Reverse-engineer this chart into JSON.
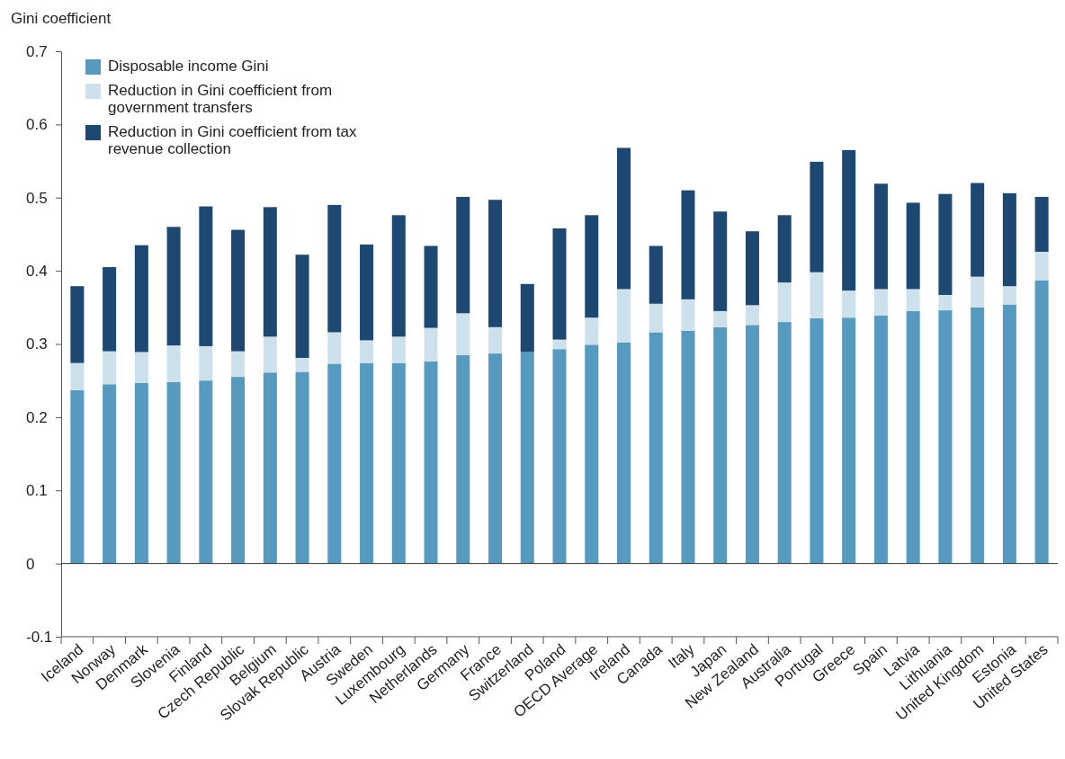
{
  "chart_data": {
    "type": "bar",
    "stacked": true,
    "ylabel": "Gini coefficient",
    "categories": [
      "Iceland",
      "Norway",
      "Denmark",
      "Slovenia",
      "Finland",
      "Czech Republic",
      "Belgium",
      "Slovak Republic",
      "Austria",
      "Sweden",
      "Luxembourg",
      "Netherlands",
      "Germany",
      "France",
      "Switzerland",
      "Poland",
      "OECD Average",
      "Ireland",
      "Canada",
      "Italy",
      "Japan",
      "New Zealand",
      "Australia",
      "Portugal",
      "Greece",
      "Spain",
      "Latvia",
      "Lithuania",
      "United Kingdom",
      "Estonia",
      "United States"
    ],
    "series": [
      {
        "name": "Disposable income Gini",
        "color": "#569bbf",
        "values": [
          0.237,
          0.245,
          0.247,
          0.248,
          0.25,
          0.255,
          0.261,
          0.262,
          0.273,
          0.274,
          0.274,
          0.276,
          0.285,
          0.287,
          0.289,
          0.293,
          0.299,
          0.302,
          0.316,
          0.318,
          0.323,
          0.326,
          0.33,
          0.335,
          0.336,
          0.339,
          0.345,
          0.346,
          0.35,
          0.354,
          0.387
        ]
      },
      {
        "name": "Reduction in Gini coefficient from government transfers",
        "color": "#cde1ec",
        "values": [
          0.037,
          0.045,
          0.042,
          0.05,
          0.047,
          0.035,
          0.049,
          0.019,
          0.043,
          0.031,
          0.036,
          0.046,
          0.057,
          0.036,
          0,
          0.013,
          0.037,
          0.073,
          0.039,
          0.043,
          0.022,
          0.027,
          0.054,
          0.063,
          0.037,
          0.036,
          0.03,
          0.021,
          0.042,
          0.025,
          0.039
        ]
      },
      {
        "name": "Reduction in Gini coefficient from tax revenue collection",
        "color": "#1d4871",
        "values": [
          0.105,
          0.115,
          0.146,
          0.162,
          0.191,
          0.166,
          0.177,
          0.141,
          0.174,
          0.131,
          0.166,
          0.112,
          0.159,
          0.174,
          0.093,
          0.152,
          0.14,
          0.193,
          0.079,
          0.149,
          0.136,
          0.101,
          0.092,
          0.151,
          0.192,
          0.144,
          0.118,
          0.138,
          0.128,
          0.127,
          0.075
        ]
      }
    ],
    "ylim": [
      -0.1,
      0.7
    ],
    "yticks": [
      -0.1,
      0,
      0.1,
      0.2,
      0.3,
      0.4,
      0.5,
      0.6,
      0.7
    ],
    "legend": "top left",
    "ref_lines": [
      {
        "axis": "y",
        "value": 0
      }
    ]
  }
}
